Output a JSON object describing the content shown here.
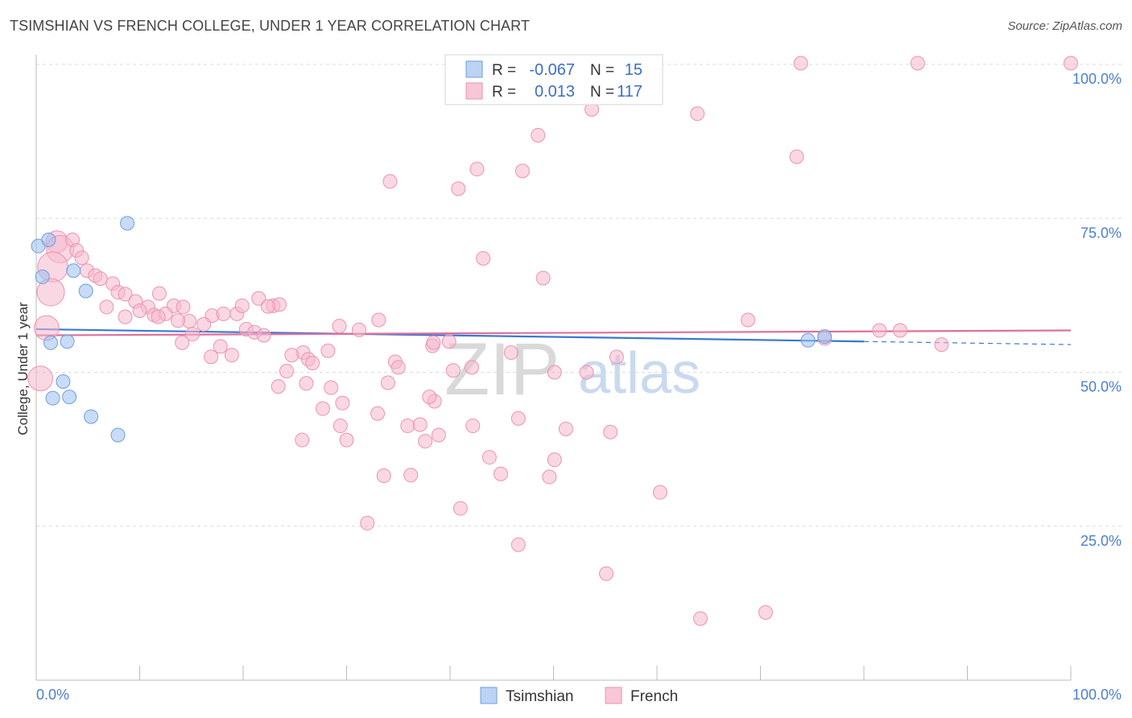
{
  "title": "TSIMSHIAN VS FRENCH COLLEGE, UNDER 1 YEAR CORRELATION CHART",
  "source": "Source: ZipAtlas.com",
  "chart_data": {
    "type": "scatter",
    "title": "TSIMSHIAN VS FRENCH COLLEGE, UNDER 1 YEAR CORRELATION CHART",
    "xlabel": "",
    "ylabel": "College, Under 1 year",
    "xlim": [
      0,
      100
    ],
    "ylim": [
      0,
      100
    ],
    "x_tick_labels": [
      "0.0%",
      "100.0%"
    ],
    "y_ticks": [
      25,
      50,
      75,
      100
    ],
    "y_tick_labels": [
      "25.0%",
      "50.0%",
      "75.0%",
      "100.0%"
    ],
    "watermark": [
      "ZIP",
      "atlas"
    ],
    "legend": {
      "r_label": "R =",
      "n_label": "N =",
      "entries": [
        {
          "name": "Tsimshian",
          "r": "-0.067",
          "n": "15"
        },
        {
          "name": "French",
          "r": "0.013",
          "n": "117"
        }
      ]
    },
    "series": [
      {
        "name": "Tsimshian",
        "color": "#9bbff0",
        "stroke": "#6f9ee0",
        "line_color": "#3a78d4",
        "trend": {
          "x0": 0,
          "y0": 57.0,
          "x1": 80,
          "y1": 55.0,
          "dash_to": 100,
          "dash_y": 54.5
        },
        "points": [
          [
            0.2,
            70.5,
            1
          ],
          [
            1.2,
            71.5,
            1
          ],
          [
            0.6,
            65.5,
            1
          ],
          [
            8.8,
            74.2,
            1
          ],
          [
            3.6,
            66.5,
            1
          ],
          [
            4.8,
            63.2,
            1
          ],
          [
            1.4,
            54.8,
            1
          ],
          [
            3.0,
            55.0,
            1
          ],
          [
            2.6,
            48.5,
            1
          ],
          [
            1.6,
            45.8,
            1
          ],
          [
            3.2,
            46.0,
            1
          ],
          [
            5.3,
            42.8,
            1
          ],
          [
            7.9,
            39.8,
            1
          ],
          [
            74.6,
            55.2,
            1
          ],
          [
            76.2,
            55.8,
            1
          ]
        ]
      },
      {
        "name": "French",
        "color": "#f6b8cc",
        "stroke": "#ee92b0",
        "line_color": "#e0709a",
        "trend": {
          "x0": 0,
          "y0": 56.0,
          "x1": 100,
          "y1": 56.8
        },
        "points": [
          [
            2.0,
            71.2,
            1.6
          ],
          [
            2.3,
            70.0,
            2.0
          ],
          [
            3.5,
            71.5,
            1
          ],
          [
            3.9,
            69.8,
            1
          ],
          [
            4.4,
            68.6,
            1
          ],
          [
            1.6,
            67.1,
            2.2
          ],
          [
            4.9,
            66.5,
            1
          ],
          [
            5.7,
            65.7,
            1
          ],
          [
            6.2,
            65.2,
            1
          ],
          [
            7.4,
            64.4,
            1
          ],
          [
            1.4,
            63.0,
            2.0
          ],
          [
            7.9,
            63.0,
            1
          ],
          [
            8.6,
            62.7,
            1
          ],
          [
            11.9,
            62.8,
            1
          ],
          [
            9.6,
            61.5,
            1
          ],
          [
            6.8,
            60.6,
            1
          ],
          [
            10.8,
            60.6,
            1
          ],
          [
            13.3,
            60.8,
            1
          ],
          [
            14.2,
            60.6,
            1
          ],
          [
            10.0,
            60.0,
            1
          ],
          [
            11.4,
            59.3,
            1
          ],
          [
            12.5,
            59.5,
            1
          ],
          [
            8.6,
            59.0,
            1
          ],
          [
            17.0,
            59.2,
            1
          ],
          [
            18.1,
            59.5,
            1
          ],
          [
            19.4,
            59.5,
            1
          ],
          [
            14.8,
            58.3,
            1
          ],
          [
            13.7,
            58.4,
            1
          ],
          [
            16.2,
            57.8,
            1
          ],
          [
            11.8,
            59.0,
            1
          ],
          [
            21.5,
            62.0,
            1
          ],
          [
            19.9,
            60.8,
            1
          ],
          [
            22.9,
            60.8,
            1
          ],
          [
            23.5,
            61.0,
            1
          ],
          [
            22.4,
            60.7,
            1
          ],
          [
            1.0,
            57.2,
            1.8
          ],
          [
            15.1,
            56.2,
            1
          ],
          [
            20.3,
            57.0,
            1
          ],
          [
            21.1,
            56.5,
            1
          ],
          [
            22.0,
            56.0,
            1
          ],
          [
            29.3,
            57.5,
            1
          ],
          [
            31.2,
            56.9,
            1
          ],
          [
            33.1,
            58.5,
            1
          ],
          [
            39.9,
            55.0,
            1
          ],
          [
            38.3,
            54.3,
            1
          ],
          [
            17.8,
            54.2,
            1
          ],
          [
            14.1,
            54.8,
            1
          ],
          [
            25.8,
            53.2,
            1
          ],
          [
            28.2,
            53.5,
            1
          ],
          [
            18.9,
            52.8,
            1
          ],
          [
            16.9,
            52.5,
            1
          ],
          [
            26.3,
            52.1,
            1
          ],
          [
            26.7,
            51.5,
            1
          ],
          [
            34.7,
            51.7,
            1
          ],
          [
            35.0,
            50.8,
            1
          ],
          [
            24.2,
            50.2,
            1
          ],
          [
            40.3,
            50.3,
            1
          ],
          [
            42.1,
            50.8,
            1
          ],
          [
            45.9,
            53.2,
            1
          ],
          [
            50.1,
            50.0,
            1
          ],
          [
            56.1,
            52.5,
            1
          ],
          [
            49.0,
            65.3,
            1
          ],
          [
            23.4,
            47.7,
            1
          ],
          [
            26.1,
            48.2,
            1
          ],
          [
            28.5,
            47.5,
            1
          ],
          [
            34.0,
            48.3,
            1
          ],
          [
            29.6,
            45.0,
            1
          ],
          [
            38.5,
            45.3,
            1
          ],
          [
            27.7,
            44.1,
            1
          ],
          [
            33.0,
            43.3,
            1
          ],
          [
            29.4,
            41.3,
            1
          ],
          [
            35.9,
            41.3,
            1
          ],
          [
            37.1,
            41.5,
            1
          ],
          [
            42.2,
            41.3,
            1
          ],
          [
            46.6,
            42.5,
            1
          ],
          [
            25.7,
            39.0,
            1
          ],
          [
            30.0,
            39.0,
            1
          ],
          [
            37.6,
            38.8,
            1
          ],
          [
            38.9,
            39.8,
            1
          ],
          [
            51.2,
            40.8,
            1
          ],
          [
            55.5,
            40.3,
            1
          ],
          [
            43.8,
            36.2,
            1
          ],
          [
            50.1,
            35.8,
            1
          ],
          [
            44.9,
            33.5,
            1
          ],
          [
            33.6,
            33.2,
            1
          ],
          [
            36.2,
            33.3,
            1
          ],
          [
            49.6,
            33.0,
            1
          ],
          [
            60.3,
            30.5,
            1
          ],
          [
            41.0,
            27.9,
            1
          ],
          [
            32.0,
            25.5,
            1
          ],
          [
            46.6,
            22.0,
            1
          ],
          [
            55.1,
            17.3,
            1
          ],
          [
            64.2,
            10.0,
            1
          ],
          [
            70.5,
            11.0,
            1
          ],
          [
            34.2,
            81.0,
            1
          ],
          [
            40.8,
            79.8,
            1
          ],
          [
            42.6,
            83.0,
            1
          ],
          [
            47.0,
            82.7,
            1
          ],
          [
            48.5,
            88.5,
            1
          ],
          [
            53.7,
            92.7,
            1
          ],
          [
            63.9,
            92.0,
            1
          ],
          [
            59.4,
            100.2,
            1
          ],
          [
            73.9,
            100.2,
            1
          ],
          [
            85.2,
            100.2,
            1
          ],
          [
            100.0,
            100.2,
            1
          ],
          [
            73.5,
            85.0,
            1
          ],
          [
            68.8,
            58.5,
            1
          ],
          [
            43.2,
            68.5,
            1
          ],
          [
            81.5,
            56.8,
            1
          ],
          [
            83.5,
            56.8,
            1
          ],
          [
            87.5,
            54.5,
            1
          ],
          [
            76.2,
            55.5,
            1
          ],
          [
            0.4,
            49.0,
            1.8
          ],
          [
            38.4,
            54.8,
            1
          ],
          [
            53.2,
            50.0,
            1
          ],
          [
            24.7,
            52.8,
            1
          ],
          [
            38.0,
            46.0,
            1
          ]
        ]
      }
    ]
  }
}
